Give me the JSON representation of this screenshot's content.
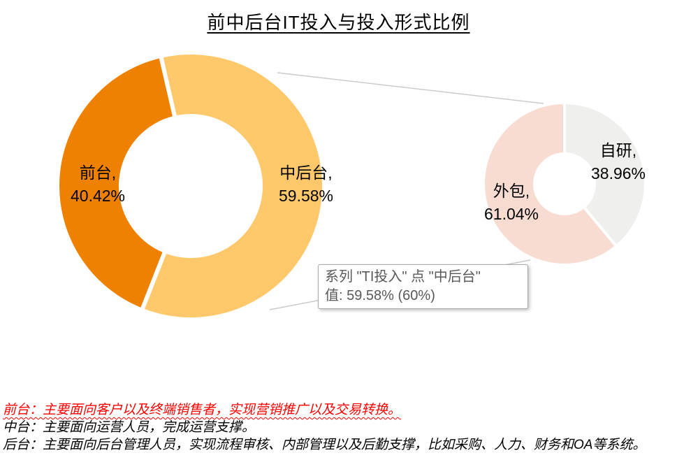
{
  "title": "前中后台IT投入与投入形式比例",
  "chart_data": [
    {
      "type": "donut",
      "description": "前中后台IT投入比例（主环）",
      "slices": [
        {
          "name": "中后台",
          "value": 59.58,
          "unit": "%",
          "color": "#FFC96B",
          "label_name": "中后台,",
          "label_value": "59.58%"
        },
        {
          "name": "前台",
          "value": 40.42,
          "unit": "%",
          "color": "#EE8200",
          "label_name": "前台,",
          "label_value": "40.42%"
        }
      ]
    },
    {
      "type": "donut",
      "description": "投入形式比例（子环）",
      "slices": [
        {
          "name": "自研",
          "value": 38.96,
          "unit": "%",
          "color": "#EFEFED",
          "label_name": "自研,",
          "label_value": "38.96%"
        },
        {
          "name": "外包",
          "value": 61.04,
          "unit": "%",
          "color": "#F8DCD2",
          "label_name": "外包,",
          "label_value": "61.04%"
        }
      ]
    }
  ],
  "tooltip": {
    "line1": "系列 \"TI投入\" 点 \"中后台\"",
    "line2": "值: 59.58% (60%)"
  },
  "notes": [
    {
      "text": "前台：主要面向客户以及终端销售者，实现营销推广以及交易转换。",
      "color": "#FF0000"
    },
    {
      "text": "中台：主要面向运营人员，完成运营支撑。",
      "color": "#000000"
    },
    {
      "text": "后台：主要面向后台管理人员，实现流程审核、内部管理以及后勤支撑，比如采购、人力、财务和OA等系统。",
      "color": "#000000"
    }
  ],
  "colors": {
    "front_stage": "#EE8200",
    "mid_back_stage": "#FFC96B",
    "outsourced": "#F8DCD2",
    "self_developed": "#EFEFED",
    "connector_line": "#C9C9C9",
    "tooltip_text": "#595959",
    "note_red": "#FF0000"
  }
}
